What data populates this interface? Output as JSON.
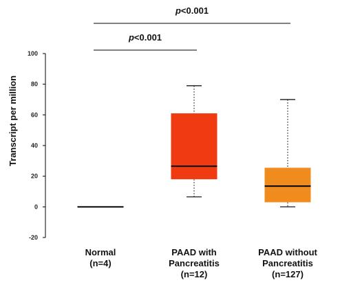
{
  "chart_data": {
    "type": "boxplot",
    "ylabel": "Transcript per million",
    "ylim": [
      -20,
      100
    ],
    "yticks": [
      "-20",
      "0",
      "20",
      "40",
      "60",
      "80",
      "100"
    ],
    "categories": [
      {
        "lines": [
          "Normal",
          "(n=4)"
        ],
        "min": 0,
        "q1": 0,
        "median": 0,
        "q3": 0,
        "max": 0,
        "color": "#000000"
      },
      {
        "lines": [
          "PAAD with",
          "Pancreatitis",
          "(n=12)"
        ],
        "min": 6.5,
        "q1": 18,
        "median": 26.5,
        "q3": 61,
        "max": 79,
        "color": "#f03a12"
      },
      {
        "lines": [
          "PAAD without",
          "Pancreatitis",
          "(n=127)"
        ],
        "min": 0,
        "q1": 3,
        "median": 13.5,
        "q3": 25.5,
        "max": 70,
        "color": "#f08c1e"
      }
    ],
    "significance": [
      {
        "p_prefix": "p",
        "p_rest": "<0.001",
        "from": 1,
        "to": 3
      },
      {
        "p_prefix": "p",
        "p_rest": "<0.001",
        "from": 1,
        "to": 2
      }
    ]
  }
}
